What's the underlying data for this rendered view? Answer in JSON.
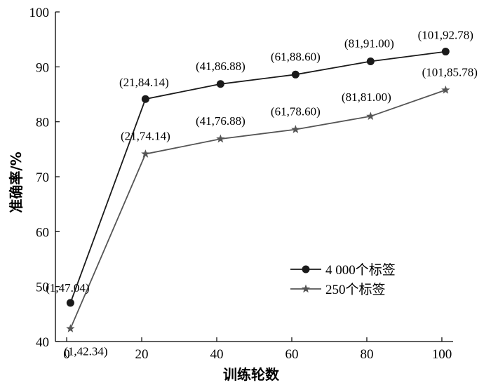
{
  "chart_data": {
    "type": "line",
    "xlabel": "训练轮数",
    "ylabel": "准确率/%",
    "xlim": [
      -3,
      103
    ],
    "ylim": [
      40,
      100
    ],
    "xticks": [
      "0",
      "20",
      "40",
      "60",
      "80",
      "100"
    ],
    "yticks": [
      "40",
      "50",
      "60",
      "70",
      "80",
      "90",
      "100"
    ],
    "grid": false,
    "legend_position": "lower-right",
    "series": [
      {
        "name": "4 000个标签",
        "marker": "circle",
        "color": "#1a1a1a",
        "points": [
          {
            "x": 1,
            "y": 47.04,
            "label": "(1,47.04)"
          },
          {
            "x": 21,
            "y": 84.14,
            "label": "(21,84.14)"
          },
          {
            "x": 41,
            "y": 86.88,
            "label": "(41,86.88)"
          },
          {
            "x": 61,
            "y": 88.6,
            "label": "(61,88.60)"
          },
          {
            "x": 81,
            "y": 91.0,
            "label": "(81,91.00)"
          },
          {
            "x": 101,
            "y": 92.78,
            "label": "(101,92.78)"
          }
        ]
      },
      {
        "name": "250个标签",
        "marker": "star",
        "color": "#555555",
        "points": [
          {
            "x": 1,
            "y": 42.34,
            "label": "(1,42.34)"
          },
          {
            "x": 21,
            "y": 74.14,
            "label": "(21,74.14)"
          },
          {
            "x": 41,
            "y": 76.88,
            "label": "(41,76.88)"
          },
          {
            "x": 61,
            "y": 78.6,
            "label": "(61,78.60)"
          },
          {
            "x": 81,
            "y": 81.0,
            "label": "(81,81.00)"
          },
          {
            "x": 101,
            "y": 85.78,
            "label": "(101,85.78)"
          }
        ]
      }
    ]
  }
}
